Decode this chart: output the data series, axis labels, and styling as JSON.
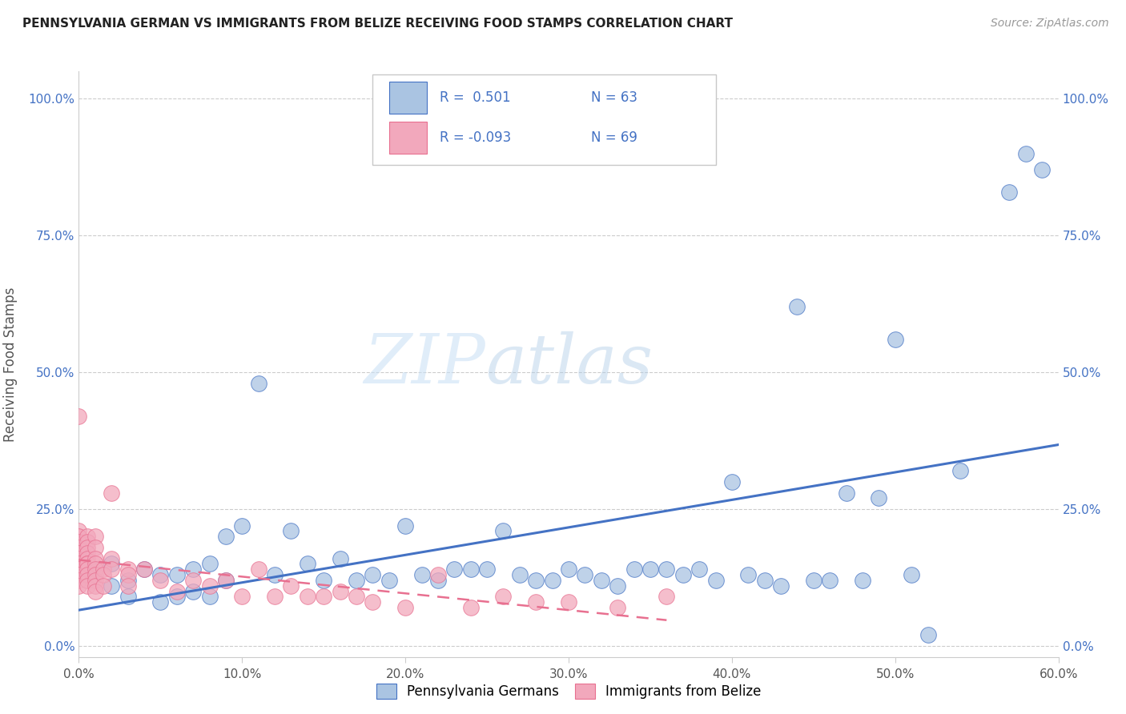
{
  "title": "PENNSYLVANIA GERMAN VS IMMIGRANTS FROM BELIZE RECEIVING FOOD STAMPS CORRELATION CHART",
  "source": "Source: ZipAtlas.com",
  "ylabel": "Receiving Food Stamps",
  "xlim": [
    0.0,
    0.6
  ],
  "ylim": [
    -0.02,
    1.05
  ],
  "xtick_labels": [
    "0.0%",
    "10.0%",
    "20.0%",
    "30.0%",
    "40.0%",
    "50.0%",
    "60.0%"
  ],
  "xtick_values": [
    0.0,
    0.1,
    0.2,
    0.3,
    0.4,
    0.5,
    0.6
  ],
  "ytick_labels": [
    "0.0%",
    "25.0%",
    "50.0%",
    "75.0%",
    "100.0%"
  ],
  "ytick_values": [
    0.0,
    0.25,
    0.5,
    0.75,
    1.0
  ],
  "legend_labels": [
    "Pennsylvania Germans",
    "Immigrants from Belize"
  ],
  "blue_R": 0.501,
  "blue_N": 63,
  "pink_R": -0.093,
  "pink_N": 69,
  "blue_color": "#aac4e2",
  "pink_color": "#f2a8bc",
  "blue_line_color": "#4472c4",
  "pink_line_color": "#e87090",
  "watermark_zip": "ZIP",
  "watermark_atlas": "atlas",
  "blue_scatter_x": [
    0.01,
    0.02,
    0.02,
    0.03,
    0.03,
    0.04,
    0.05,
    0.05,
    0.06,
    0.06,
    0.07,
    0.07,
    0.08,
    0.08,
    0.09,
    0.09,
    0.1,
    0.11,
    0.12,
    0.13,
    0.14,
    0.15,
    0.16,
    0.17,
    0.18,
    0.19,
    0.2,
    0.21,
    0.22,
    0.23,
    0.24,
    0.25,
    0.26,
    0.27,
    0.28,
    0.29,
    0.3,
    0.31,
    0.32,
    0.33,
    0.34,
    0.35,
    0.36,
    0.37,
    0.38,
    0.39,
    0.4,
    0.41,
    0.42,
    0.43,
    0.44,
    0.45,
    0.46,
    0.47,
    0.48,
    0.49,
    0.5,
    0.51,
    0.52,
    0.54,
    0.57,
    0.58,
    0.59
  ],
  "blue_scatter_y": [
    0.14,
    0.15,
    0.11,
    0.12,
    0.09,
    0.14,
    0.13,
    0.08,
    0.13,
    0.09,
    0.14,
    0.1,
    0.15,
    0.09,
    0.2,
    0.12,
    0.22,
    0.48,
    0.13,
    0.21,
    0.15,
    0.12,
    0.16,
    0.12,
    0.13,
    0.12,
    0.22,
    0.13,
    0.12,
    0.14,
    0.14,
    0.14,
    0.21,
    0.13,
    0.12,
    0.12,
    0.14,
    0.13,
    0.12,
    0.11,
    0.14,
    0.14,
    0.14,
    0.13,
    0.14,
    0.12,
    0.3,
    0.13,
    0.12,
    0.11,
    0.62,
    0.12,
    0.12,
    0.28,
    0.12,
    0.27,
    0.56,
    0.13,
    0.02,
    0.32,
    0.83,
    0.9,
    0.87
  ],
  "pink_scatter_x": [
    0.0,
    0.0,
    0.0,
    0.0,
    0.0,
    0.0,
    0.0,
    0.0,
    0.0,
    0.0,
    0.0,
    0.0,
    0.0,
    0.0,
    0.0,
    0.0,
    0.0,
    0.005,
    0.005,
    0.005,
    0.005,
    0.005,
    0.005,
    0.005,
    0.005,
    0.005,
    0.005,
    0.005,
    0.01,
    0.01,
    0.01,
    0.01,
    0.01,
    0.01,
    0.01,
    0.01,
    0.01,
    0.015,
    0.015,
    0.015,
    0.02,
    0.02,
    0.02,
    0.03,
    0.03,
    0.03,
    0.04,
    0.05,
    0.06,
    0.07,
    0.08,
    0.09,
    0.1,
    0.11,
    0.12,
    0.13,
    0.14,
    0.15,
    0.16,
    0.17,
    0.18,
    0.2,
    0.22,
    0.24,
    0.26,
    0.28,
    0.3,
    0.33,
    0.36
  ],
  "pink_scatter_y": [
    0.42,
    0.2,
    0.21,
    0.2,
    0.19,
    0.18,
    0.17,
    0.17,
    0.16,
    0.15,
    0.15,
    0.14,
    0.14,
    0.13,
    0.13,
    0.12,
    0.11,
    0.2,
    0.19,
    0.18,
    0.17,
    0.16,
    0.15,
    0.15,
    0.14,
    0.13,
    0.12,
    0.11,
    0.2,
    0.18,
    0.16,
    0.15,
    0.14,
    0.13,
    0.12,
    0.11,
    0.1,
    0.14,
    0.13,
    0.11,
    0.28,
    0.16,
    0.14,
    0.14,
    0.13,
    0.11,
    0.14,
    0.12,
    0.1,
    0.12,
    0.11,
    0.12,
    0.09,
    0.14,
    0.09,
    0.11,
    0.09,
    0.09,
    0.1,
    0.09,
    0.08,
    0.07,
    0.13,
    0.07,
    0.09,
    0.08,
    0.08,
    0.07,
    0.09
  ]
}
